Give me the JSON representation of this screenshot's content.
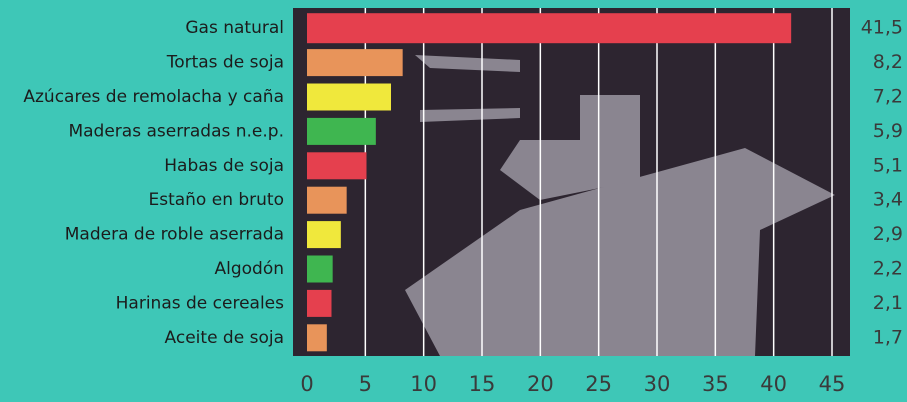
{
  "chart_data": {
    "type": "barh",
    "categories": [
      "Gas natural",
      "Tortas de soja",
      "Azúcares de remolacha y caña",
      "Maderas aserradas n.e.p.",
      "Habas de soja",
      "Estaño en bruto",
      "Madera de roble aserrada",
      "Algodón",
      "Harinas de cereales",
      "Aceite de soja"
    ],
    "values": [
      41.5,
      8.2,
      7.2,
      5.9,
      5.1,
      3.4,
      2.9,
      2.2,
      2.1,
      1.7
    ],
    "value_labels": [
      "41,5",
      "8,2",
      "7,2",
      "5,9",
      "5,1",
      "3,4",
      "2,9",
      "2,2",
      "2,1",
      "1,7"
    ],
    "colors": [
      "#e5404e",
      "#e8945a",
      "#f0e83c",
      "#3fb650",
      "#e5404e",
      "#e8945a",
      "#f0e83c",
      "#3fb650",
      "#e5404e",
      "#e8945a"
    ],
    "xlim": [
      0,
      45
    ],
    "xticks": [
      0,
      5,
      10,
      15,
      20,
      25,
      30,
      35,
      40,
      45
    ],
    "grid": true
  }
}
